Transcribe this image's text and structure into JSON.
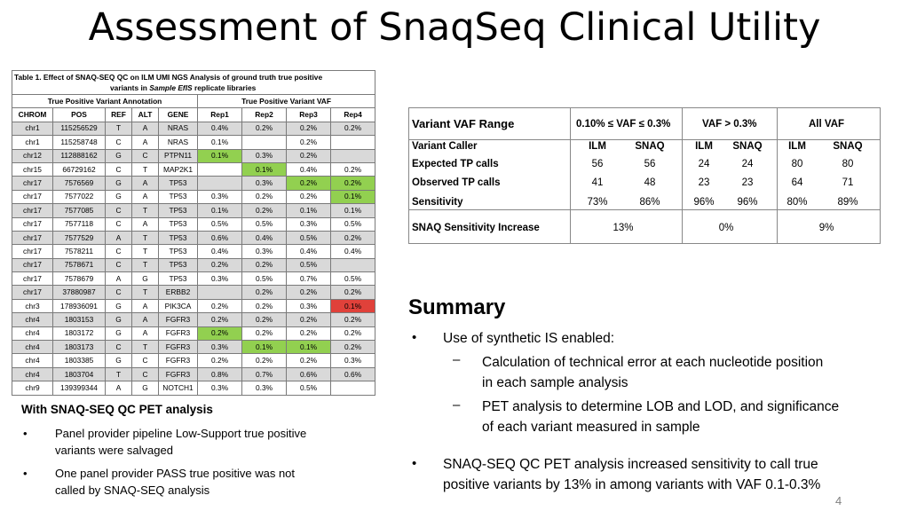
{
  "title": "Assessment of SnaqSeq Clinical Utility",
  "table1": {
    "caption_a": "Table 1.  Effect of SNAQ-SEQ QC on ILM UMI NGS Analysis of ground truth true positive",
    "caption_b": "variants in ",
    "caption_c": "Sample EfIS",
    "caption_d": " replicate libraries",
    "group1": "True Positive Variant Annotation",
    "group2": "True Positive Variant VAF",
    "headers": [
      "CHROM",
      "POS",
      "REF",
      "ALT",
      "GENE",
      "Rep1",
      "Rep2",
      "Rep3",
      "Rep4"
    ],
    "rows": [
      [
        "chr1",
        "115256529",
        "T",
        "A",
        "NRAS",
        "0.4%",
        "0.2%",
        "0.2%",
        "0.2%"
      ],
      [
        "chr1",
        "115258748",
        "C",
        "A",
        "NRAS",
        "0.1%",
        "",
        "0.2%",
        ""
      ],
      [
        "chr12",
        "112888162",
        "G",
        "C",
        "PTPN11",
        "0.1%",
        "0.3%",
        "0.2%",
        ""
      ],
      [
        "chr15",
        "66729162",
        "C",
        "T",
        "MAP2K1",
        "",
        "0.1%",
        "0.4%",
        "0.2%"
      ],
      [
        "chr17",
        "7576569",
        "G",
        "A",
        "TP53",
        "",
        "0.3%",
        "0.2%",
        "0.2%"
      ],
      [
        "chr17",
        "7577022",
        "G",
        "A",
        "TP53",
        "0.3%",
        "0.2%",
        "0.2%",
        "0.1%"
      ],
      [
        "chr17",
        "7577085",
        "C",
        "T",
        "TP53",
        "0.1%",
        "0.2%",
        "0.1%",
        "0.1%"
      ],
      [
        "chr17",
        "7577118",
        "C",
        "A",
        "TP53",
        "0.5%",
        "0.5%",
        "0.3%",
        "0.5%"
      ],
      [
        "chr17",
        "7577529",
        "A",
        "T",
        "TP53",
        "0.6%",
        "0.4%",
        "0.5%",
        "0.2%"
      ],
      [
        "chr17",
        "7578211",
        "C",
        "T",
        "TP53",
        "0.4%",
        "0.3%",
        "0.4%",
        "0.4%"
      ],
      [
        "chr17",
        "7578671",
        "C",
        "T",
        "TP53",
        "0.2%",
        "0.2%",
        "0.5%",
        ""
      ],
      [
        "chr17",
        "7578679",
        "A",
        "G",
        "TP53",
        "0.3%",
        "0.5%",
        "0.7%",
        "0.5%"
      ],
      [
        "chr17",
        "37880987",
        "C",
        "T",
        "ERBB2",
        "",
        "0.2%",
        "0.2%",
        "0.2%"
      ],
      [
        "chr3",
        "178936091",
        "G",
        "A",
        "PIK3CA",
        "0.2%",
        "0.2%",
        "0.3%",
        "0.1%"
      ],
      [
        "chr4",
        "1803153",
        "G",
        "A",
        "FGFR3",
        "0.2%",
        "0.2%",
        "0.2%",
        "0.2%"
      ],
      [
        "chr4",
        "1803172",
        "G",
        "A",
        "FGFR3",
        "0.2%",
        "0.2%",
        "0.2%",
        "0.2%"
      ],
      [
        "chr4",
        "1803173",
        "C",
        "T",
        "FGFR3",
        "0.3%",
        "0.1%",
        "0.1%",
        "0.2%"
      ],
      [
        "chr4",
        "1803385",
        "G",
        "C",
        "FGFR3",
        "0.2%",
        "0.2%",
        "0.2%",
        "0.3%"
      ],
      [
        "chr4",
        "1803704",
        "T",
        "C",
        "FGFR3",
        "0.8%",
        "0.7%",
        "0.6%",
        "0.6%"
      ],
      [
        "chr9",
        "139399344",
        "A",
        "G",
        "NOTCH1",
        "0.3%",
        "0.3%",
        "0.5%",
        ""
      ]
    ],
    "highlight_colors": {
      "salvaged": "#92d050",
      "not_called": "#e0413a"
    },
    "highlights": [
      {
        "row": 2,
        "col": 5,
        "status": "salvaged"
      },
      {
        "row": 3,
        "col": 6,
        "status": "salvaged"
      },
      {
        "row": 4,
        "col": 7,
        "status": "salvaged"
      },
      {
        "row": 4,
        "col": 8,
        "status": "salvaged"
      },
      {
        "row": 5,
        "col": 8,
        "status": "salvaged"
      },
      {
        "row": 13,
        "col": 8,
        "status": "not_called"
      },
      {
        "row": 15,
        "col": 5,
        "status": "salvaged"
      },
      {
        "row": 16,
        "col": 6,
        "status": "salvaged"
      },
      {
        "row": 16,
        "col": 7,
        "status": "salvaged"
      }
    ]
  },
  "table2": {
    "range_label": "Variant VAF Range",
    "range1": "0.10% ≤ VAF ≤ 0.3%",
    "range2": "VAF > 0.3%",
    "range3": "All VAF",
    "caller_label": "Variant Caller",
    "callers": [
      "ILM",
      "SNAQ",
      "ILM",
      "SNAQ",
      "ILM",
      "SNAQ"
    ],
    "expected_label": "Expected TP calls",
    "expected": [
      "56",
      "56",
      "24",
      "24",
      "80",
      "80"
    ],
    "observed_label": "Observed TP calls",
    "observed": [
      "41",
      "48",
      "23",
      "23",
      "64",
      "71"
    ],
    "sensitivity_label": "Sensitivity",
    "sensitivity": [
      "73%",
      "86%",
      "96%",
      "96%",
      "80%",
      "89%"
    ],
    "increase_label": "SNAQ Sensitivity Increase",
    "increase": [
      "13%",
      "0%",
      "9%"
    ]
  },
  "summary": {
    "heading": "Summary",
    "b1": "Use of synthetic IS enabled:",
    "b1a_l1": "Calculation of technical error at each nucleotide position",
    "b1a_l2": "in each sample analysis",
    "b1b_l1": "PET analysis to determine LOB and LOD, and significance",
    "b1b_l2": "of each variant measured in sample",
    "b2_l1": "SNAQ-SEQ QC PET analysis increased sensitivity to call true",
    "b2_l2": "positive variants by 13% in among variants with VAF 0.1-0.3%",
    "bullet": "•",
    "dash": "–"
  },
  "left_notes": {
    "heading": "With SNAQ-SEQ QC PET analysis",
    "n1_l1": "Panel provider pipeline Low-Support true positive",
    "n1_l2": "variants were salvaged",
    "n2_l1": "One panel provider PASS true positive was not",
    "n2_l2": "called by SNAQ-SEQ analysis",
    "bullet": "•"
  },
  "page_number": "4"
}
